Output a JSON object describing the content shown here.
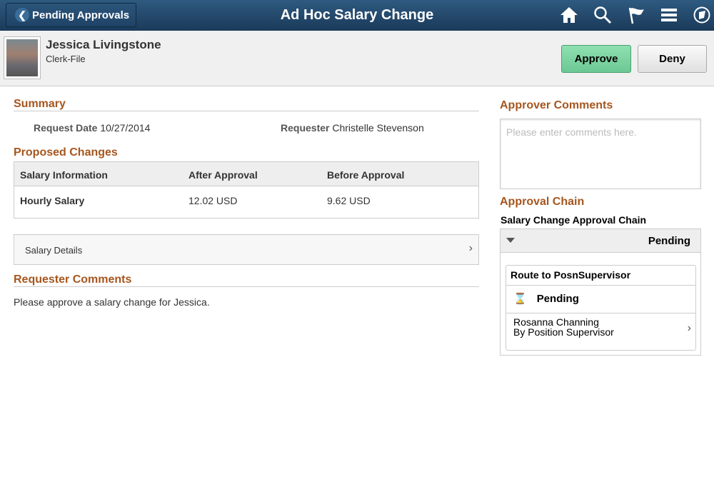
{
  "banner": {
    "back_label": "Pending Approvals",
    "title": "Ad Hoc Salary Change",
    "icons": [
      "home-icon",
      "search-icon",
      "flag-icon",
      "menu-icon",
      "navbar-icon"
    ]
  },
  "employee": {
    "name": "Jessica Livingstone",
    "job": "Clerk-File"
  },
  "actions": {
    "approve": "Approve",
    "deny": "Deny"
  },
  "summary": {
    "title": "Summary",
    "request_date_label": "Request Date",
    "request_date": "10/27/2014",
    "requester_label": "Requester",
    "requester": "Christelle Stevenson"
  },
  "proposed": {
    "title": "Proposed Changes",
    "columns": [
      "Salary Information",
      "After Approval",
      "Before Approval"
    ],
    "rows": [
      [
        "Hourly Salary",
        "12.02 USD",
        "9.62 USD"
      ]
    ]
  },
  "salary_details": "Salary Details",
  "requester_comments": {
    "title": "Requester Comments",
    "text": "Please approve a salary change for Jessica."
  },
  "approver_comments": {
    "title": "Approver Comments",
    "placeholder": "Please enter comments here."
  },
  "approval_chain": {
    "title": "Approval Chain",
    "name": "Salary Change Approval Chain",
    "status": "Pending",
    "step": {
      "title": "Route to PosnSupervisor",
      "status": "Pending",
      "approver": "Rosanna Channing",
      "approver_role": "By Position Supervisor"
    }
  },
  "colors": {
    "accent": "#a5561e",
    "banner": "#1f4366",
    "approve": "#6cc894"
  }
}
